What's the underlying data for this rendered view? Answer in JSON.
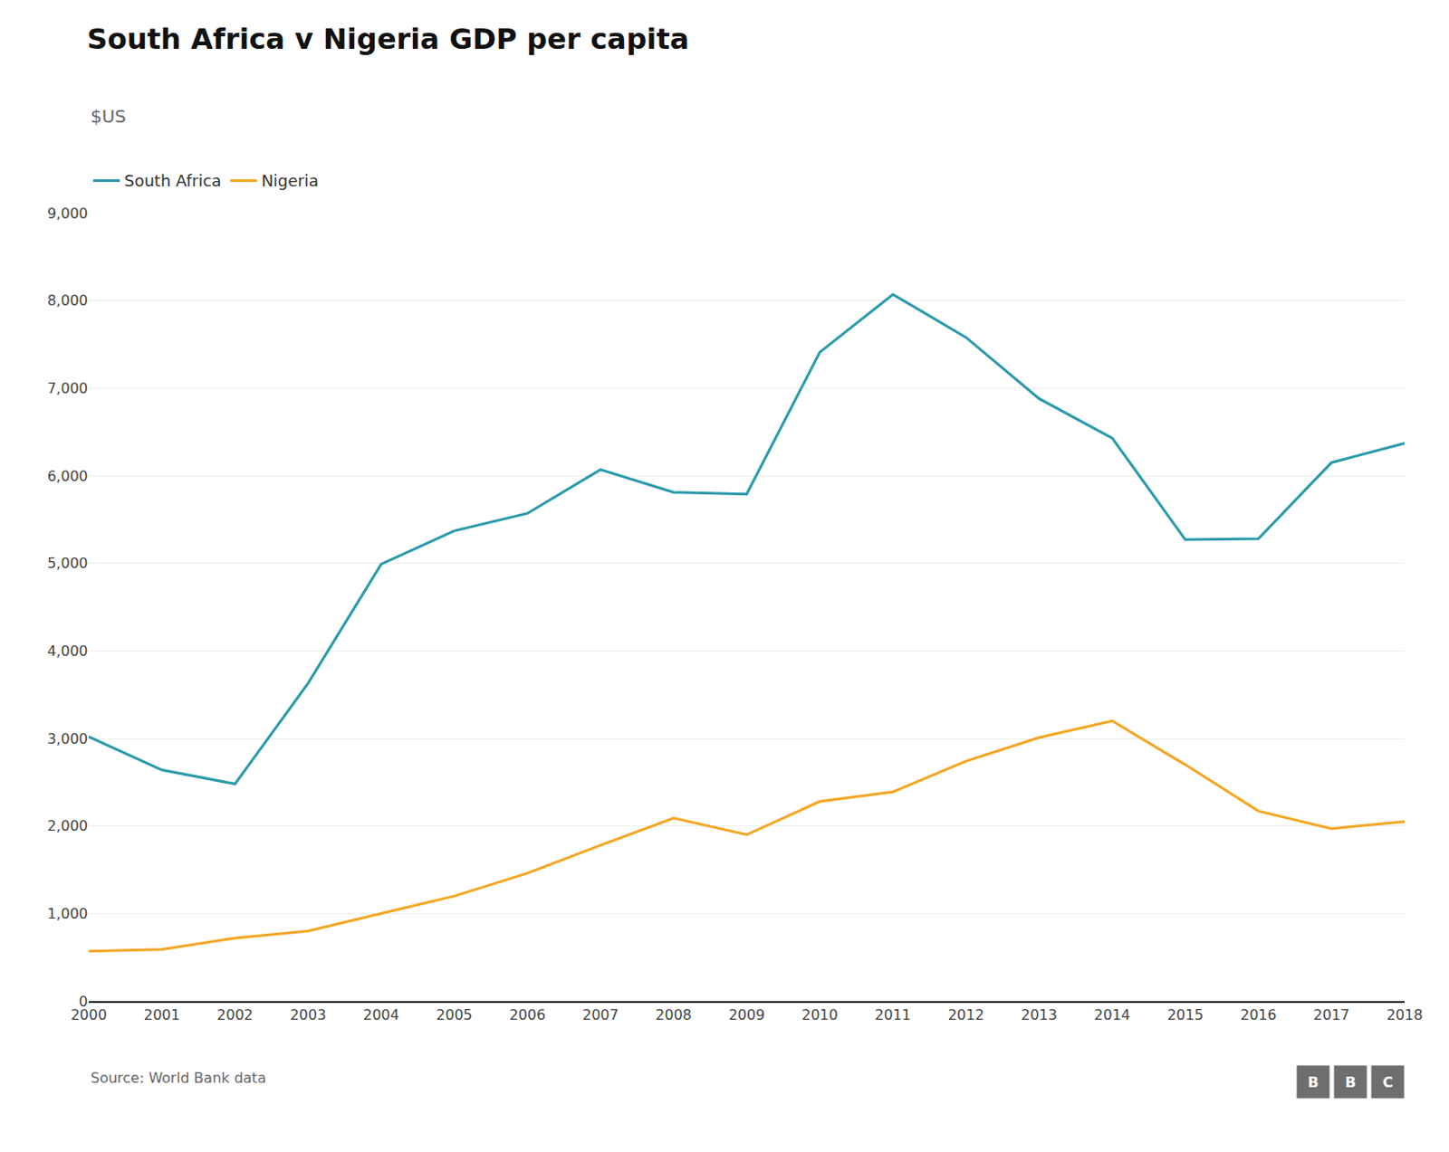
{
  "chart_data": {
    "type": "line",
    "title": "South Africa v Nigeria GDP per capita",
    "subtitle": "$US",
    "source": "Source: World Bank data",
    "annotations": [
      "B",
      "B",
      "C"
    ],
    "x": [
      2000,
      2001,
      2002,
      2003,
      2004,
      2005,
      2006,
      2007,
      2008,
      2009,
      2010,
      2011,
      2012,
      2013,
      2014,
      2015,
      2016,
      2017,
      2018
    ],
    "series": [
      {
        "name": "South Africa",
        "color": "#2a9aac",
        "values": [
          3020,
          2640,
          2480,
          3630,
          4990,
          5370,
          5570,
          6070,
          5810,
          5790,
          7410,
          8070,
          7580,
          6880,
          6430,
          5270,
          5280,
          6150,
          6370
        ]
      },
      {
        "name": "Nigeria",
        "color": "#f5a623",
        "values": [
          570,
          590,
          720,
          800,
          1000,
          1200,
          1460,
          1780,
          2090,
          1900,
          2280,
          2390,
          2740,
          3010,
          3200,
          2700,
          2170,
          1970,
          2050
        ]
      }
    ],
    "xlim": [
      2000,
      2018
    ],
    "xticks": [
      2000,
      2001,
      2002,
      2003,
      2004,
      2005,
      2006,
      2007,
      2008,
      2009,
      2010,
      2011,
      2012,
      2013,
      2014,
      2015,
      2016,
      2017,
      2018
    ],
    "ylim": [
      0,
      9000
    ],
    "yticks": [
      0,
      {
        "value": 1000,
        "label": "1,000"
      },
      {
        "value": 2000,
        "label": "2,000"
      },
      {
        "value": 3000,
        "label": "3,000"
      },
      {
        "value": 4000,
        "label": "4,000"
      },
      {
        "value": 5000,
        "label": "5,000"
      },
      {
        "value": 6000,
        "label": "6,000"
      },
      {
        "value": 7000,
        "label": "7,000"
      },
      {
        "value": 8000,
        "label": "8,000"
      },
      {
        "value": 9000,
        "label": "9,000"
      }
    ],
    "grid": true,
    "legend": "top left"
  }
}
